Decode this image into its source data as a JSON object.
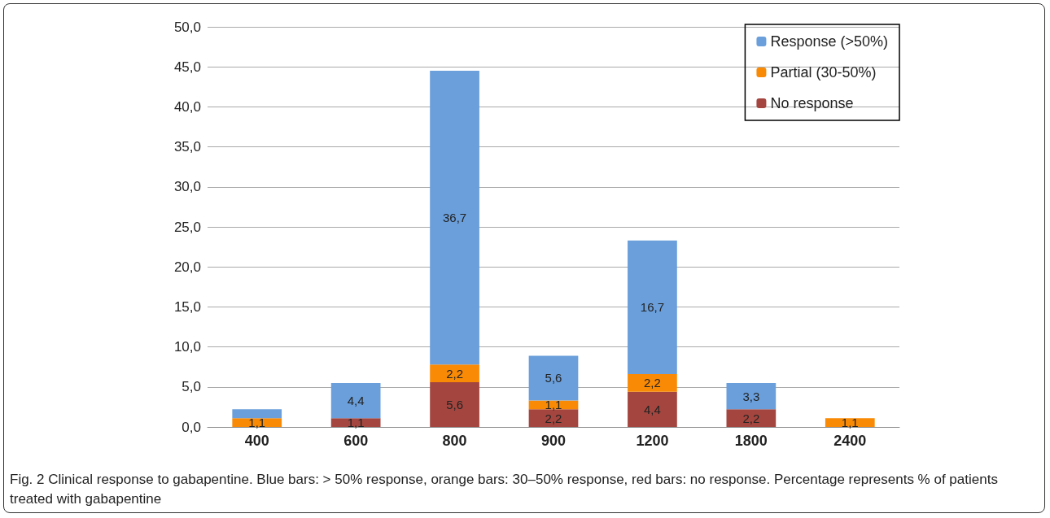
{
  "chart_data": {
    "type": "bar",
    "stacked": true,
    "categories": [
      "400",
      "600",
      "800",
      "900",
      "1200",
      "1800",
      "2400"
    ],
    "series": [
      {
        "name": "No response",
        "color": "#a4463f",
        "values": [
          0,
          1.1,
          5.6,
          2.2,
          4.4,
          2.2,
          0
        ],
        "value_labels": [
          null,
          "1,1",
          "5,6",
          "2,2",
          "4,4",
          "2,2",
          null
        ]
      },
      {
        "name": "Partial (30-50%)",
        "color": "#f98a06",
        "values": [
          1.1,
          0,
          2.2,
          1.1,
          2.2,
          0,
          1.1
        ],
        "value_labels": [
          "1,1",
          null,
          "2,2",
          "1,1",
          "2,2",
          null,
          "1,1"
        ]
      },
      {
        "name": "Response (>50%)",
        "color": "#6a9fdb",
        "values": [
          1.1,
          4.4,
          36.7,
          5.6,
          16.7,
          3.3,
          0
        ],
        "value_labels": [
          null,
          "4,4",
          "36,7",
          "5,6",
          "16,7",
          "3,3",
          null
        ]
      }
    ],
    "ylim": [
      0,
      50
    ],
    "yticks": [
      {
        "value": 0,
        "label": "0,0"
      },
      {
        "value": 5,
        "label": "5,0"
      },
      {
        "value": 10,
        "label": "10,0"
      },
      {
        "value": 15,
        "label": "15,0"
      },
      {
        "value": 20,
        "label": "20,0"
      },
      {
        "value": 25,
        "label": "25,0"
      },
      {
        "value": 30,
        "label": "30,0"
      },
      {
        "value": 35,
        "label": "35,0"
      },
      {
        "value": 40,
        "label": "40,0"
      },
      {
        "value": 45,
        "label": "45,0"
      },
      {
        "value": 50,
        "label": "50,0"
      }
    ],
    "grid": "y",
    "legend": "top right",
    "annotations": [
      "Fig. 2 Clinical response to gabapentine. Blue bars: > 50% response, orange bars: 30–50% response, red bars: no response. Percentage represents % of patients treated with gabapentine"
    ]
  }
}
